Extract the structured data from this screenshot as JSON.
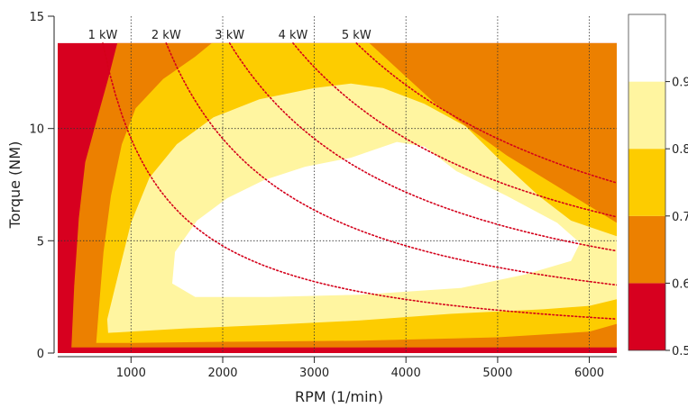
{
  "chart_data": {
    "type": "heatmap",
    "title": "",
    "xlabel": "RPM (1/min)",
    "ylabel": "Torque (NM)",
    "xlim": [
      200,
      6300
    ],
    "ylim": [
      0,
      15
    ],
    "x_ticks": [
      "1000",
      "2000",
      "3000",
      "4000",
      "5000",
      "6000"
    ],
    "y_ticks": [
      "0",
      "5",
      "10",
      "15"
    ],
    "grid": true,
    "max_torque": 13.8,
    "efficiency_bands": [
      {
        "min": 0.5,
        "max": 0.6,
        "color": "#d7001f"
      },
      {
        "min": 0.6,
        "max": 0.7,
        "color": "#ec8000"
      },
      {
        "min": 0.7,
        "max": 0.8,
        "color": "#fdcc00"
      },
      {
        "min": 0.8,
        "max": 0.9,
        "color": "#fff5a0"
      },
      {
        "min": 0.9,
        "max": 1.0,
        "color": "#ffffff"
      }
    ],
    "colorbar_ticks": [
      "0.5",
      "0.6",
      "0.7",
      "0.8",
      "0.9"
    ],
    "power_curves": [
      {
        "label": "1 kW",
        "kw": 1
      },
      {
        "label": "2 kW",
        "kw": 2
      },
      {
        "label": "3 kW",
        "kw": 3
      },
      {
        "label": "4 kW",
        "kw": 4
      },
      {
        "label": "5 kW",
        "kw": 5
      }
    ]
  }
}
